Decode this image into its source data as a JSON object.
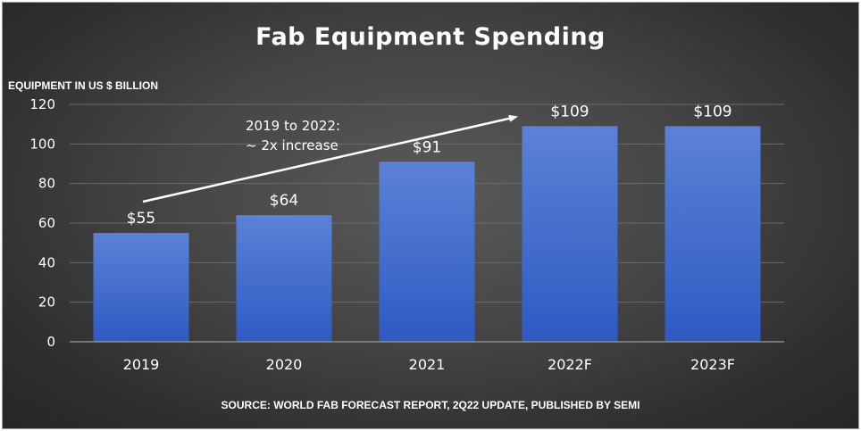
{
  "chart_data": {
    "type": "bar",
    "title": "Fab Equipment Spending",
    "ylabel": "EQUIPMENT IN US $ BILLION",
    "xlabel": "",
    "categories": [
      "2019",
      "2020",
      "2021",
      "2022F",
      "2023F"
    ],
    "values": [
      55,
      64,
      91,
      109,
      109
    ],
    "data_labels": [
      "$55",
      "$64",
      "$91",
      "$109",
      "$109"
    ],
    "ylim": [
      0,
      120
    ],
    "yticks": [
      0,
      20,
      40,
      60,
      80,
      100,
      120
    ],
    "grid": true,
    "bar_color": "#3d68c9",
    "annotation": {
      "line1": "2019 to 2022:",
      "line2": "~ 2x increase"
    },
    "source": "SOURCE: WORLD FAB FORECAST REPORT, 2Q22 UPDATE, PUBLISHED BY SEMI"
  },
  "colors": {
    "background": "#444444",
    "text": "#ffffff",
    "gridline": "#6a6a6a"
  }
}
